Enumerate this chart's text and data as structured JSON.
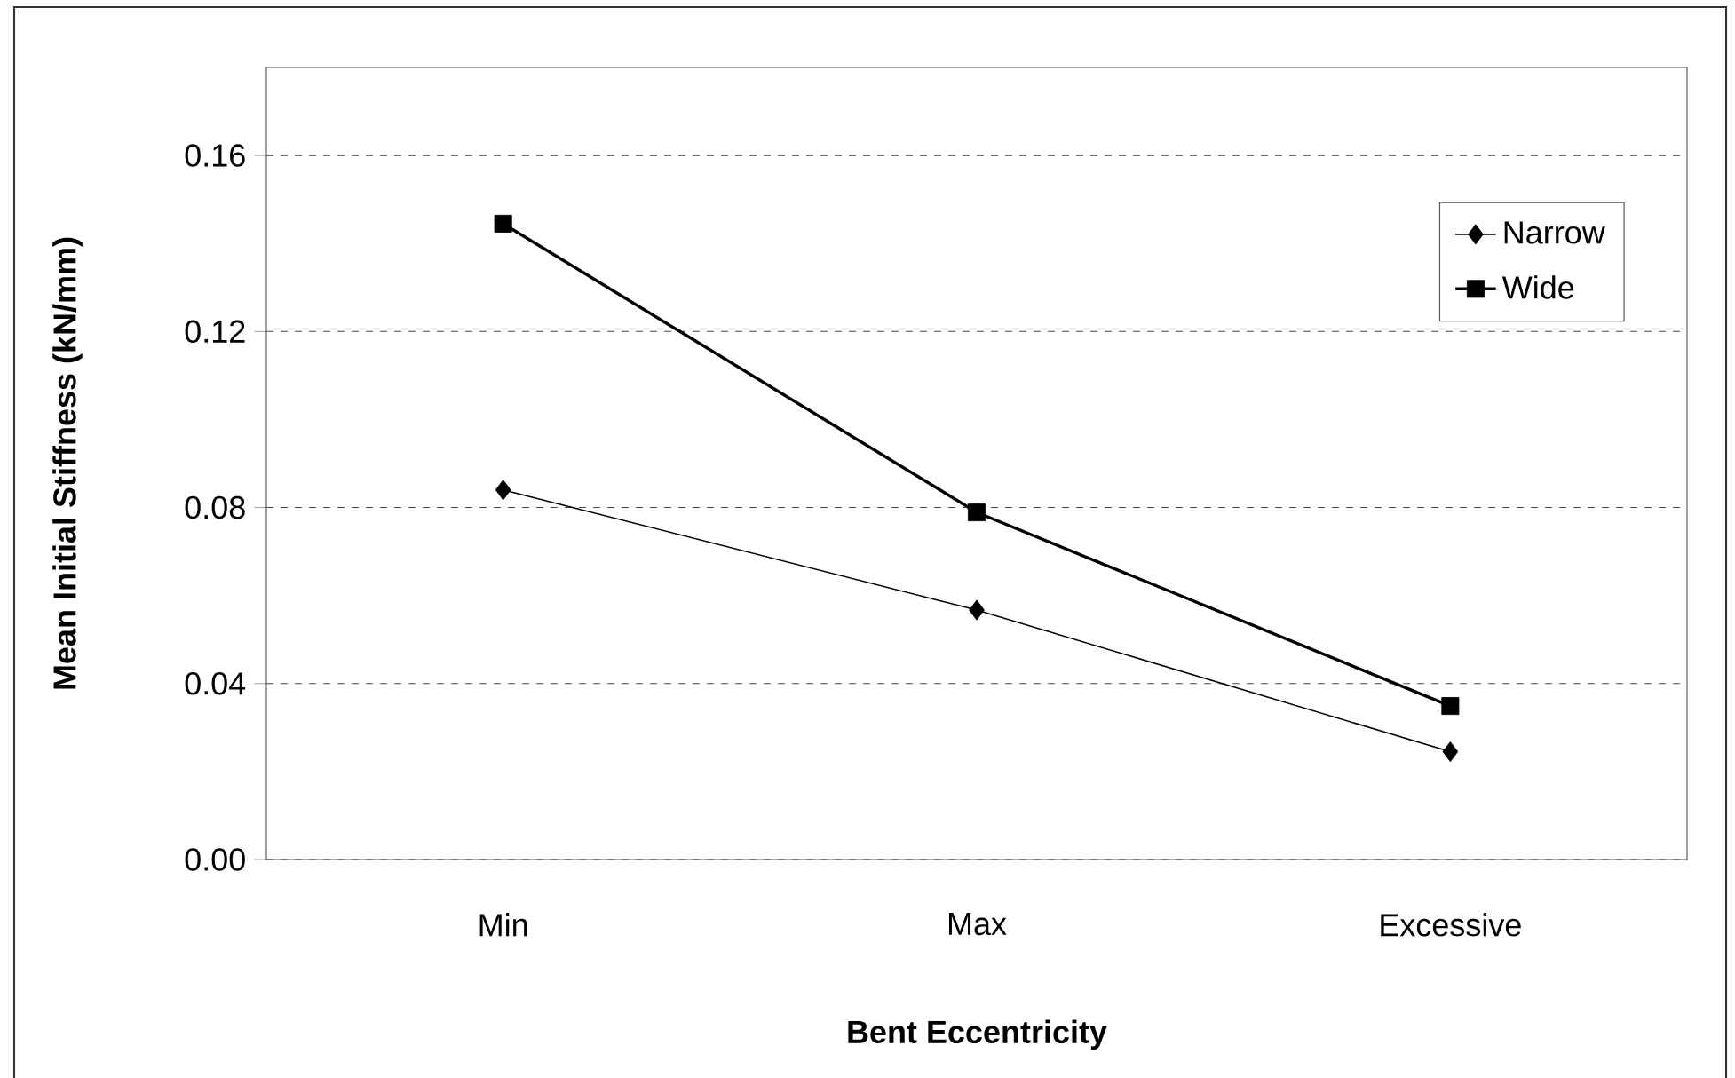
{
  "chart_data": {
    "type": "line",
    "xlabel": "Bent Eccentricity",
    "ylabel": "Mean Initial Stiffness (kN/mm)",
    "categories": [
      "Min",
      "Max",
      "Excessive"
    ],
    "series": [
      {
        "name": "Narrow",
        "color": "#000000",
        "marker": "diamond",
        "values": [
          0.084,
          0.0567,
          0.0245
        ]
      },
      {
        "name": "Wide",
        "color": "#000000",
        "marker": "square",
        "values": [
          0.1445,
          0.0789,
          0.0349
        ]
      }
    ],
    "ylim": [
      0,
      0.18
    ],
    "yticks": [
      {
        "value": 0,
        "label": "0.00"
      },
      0.04,
      0.08,
      0.12,
      0.16
    ],
    "grid": "y",
    "legend": "top right",
    "line_style": "solid"
  }
}
